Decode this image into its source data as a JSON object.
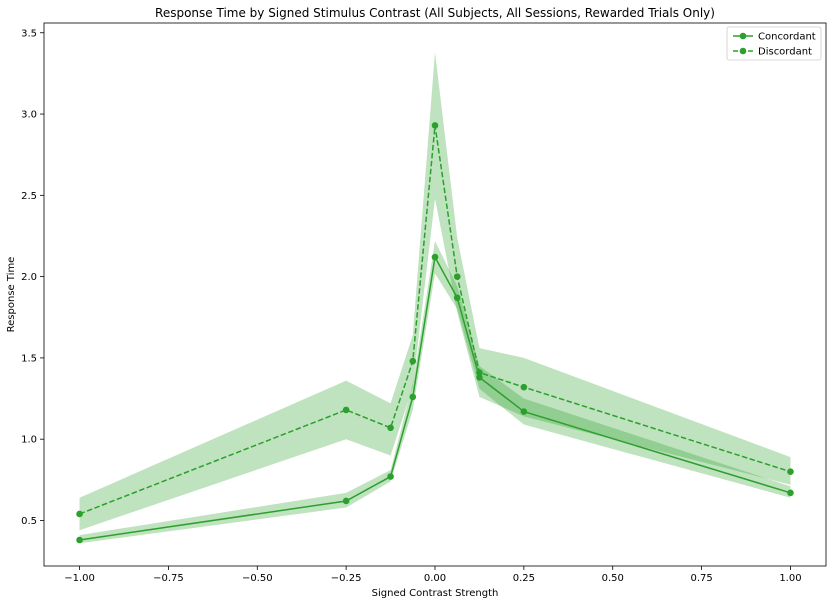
{
  "chart_data": {
    "type": "line",
    "title": "Response Time by Signed Stimulus Contrast (All Subjects, All Sessions, Rewarded Trials Only)",
    "xlabel": "Signed Contrast Strength",
    "ylabel": "Response Time",
    "xlim": [
      -1.1,
      1.1
    ],
    "ylim": [
      0.22,
      3.56
    ],
    "xticks": [
      -1.0,
      -0.75,
      -0.5,
      -0.25,
      0.0,
      0.25,
      0.5,
      0.75,
      1.0
    ],
    "xtick_labels": [
      "−1.00",
      "−0.75",
      "−0.50",
      "−0.25",
      "0.00",
      "0.25",
      "0.50",
      "0.75",
      "1.00"
    ],
    "yticks": [
      0.5,
      1.0,
      1.5,
      2.0,
      2.5,
      3.0,
      3.5
    ],
    "ytick_labels": [
      "0.5",
      "1.0",
      "1.5",
      "2.0",
      "2.5",
      "3.0",
      "3.5"
    ],
    "grid": false,
    "legend_position": "top-right",
    "line_color": "#2ca02c",
    "band_color": "#a6d79f",
    "series": [
      {
        "name": "Concordant",
        "style": "solid",
        "x": [
          -1.0,
          -0.25,
          -0.125,
          -0.0625,
          0.0,
          0.0625,
          0.125,
          0.25,
          1.0
        ],
        "y": [
          0.38,
          0.62,
          0.77,
          1.26,
          2.12,
          1.87,
          1.38,
          1.17,
          0.67
        ],
        "lower": [
          0.36,
          0.58,
          0.74,
          1.18,
          2.02,
          1.8,
          1.31,
          1.09,
          0.64
        ],
        "upper": [
          0.41,
          0.67,
          0.81,
          1.34,
          2.22,
          1.94,
          1.45,
          1.25,
          0.71
        ]
      },
      {
        "name": "Discordant",
        "style": "dashed",
        "x": [
          -1.0,
          -0.25,
          -0.125,
          -0.0625,
          0.0,
          0.0625,
          0.125,
          0.25,
          1.0
        ],
        "y": [
          0.54,
          1.18,
          1.07,
          1.48,
          2.93,
          2.0,
          1.41,
          1.32,
          0.8
        ],
        "lower": [
          0.44,
          1.0,
          0.9,
          1.32,
          2.48,
          1.78,
          1.26,
          1.14,
          0.72
        ],
        "upper": [
          0.64,
          1.36,
          1.22,
          1.64,
          3.38,
          2.24,
          1.56,
          1.5,
          0.89
        ]
      }
    ]
  }
}
